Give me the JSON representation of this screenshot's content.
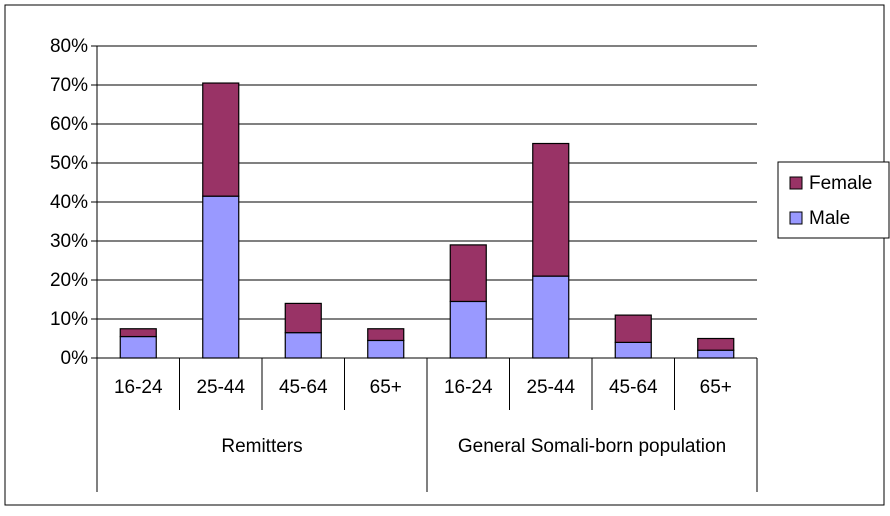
{
  "chart_data": {
    "type": "bar",
    "stacked": true,
    "categories": [
      "16-24",
      "25-44",
      "45-64",
      "65+",
      "16-24",
      "25-44",
      "45-64",
      "65+"
    ],
    "groups": [
      {
        "label": "Remitters",
        "span": 4
      },
      {
        "label": "General Somali-born population",
        "span": 4
      }
    ],
    "series": [
      {
        "name": "Male",
        "color": "#9999ff",
        "values": [
          5.5,
          41.5,
          6.5,
          4.5,
          14.5,
          21,
          4,
          2
        ]
      },
      {
        "name": "Female",
        "color": "#993366",
        "values": [
          2,
          29,
          7.5,
          3,
          14.5,
          34,
          7,
          3
        ]
      }
    ],
    "ylim": [
      0,
      80
    ],
    "yticks": [
      0,
      10,
      20,
      30,
      40,
      50,
      60,
      70,
      80
    ],
    "ytick_suffix": "%",
    "grid": true,
    "legend": {
      "position": "right",
      "entries": [
        "Female",
        "Male"
      ]
    },
    "title": "",
    "xlabel": "",
    "ylabel": ""
  }
}
